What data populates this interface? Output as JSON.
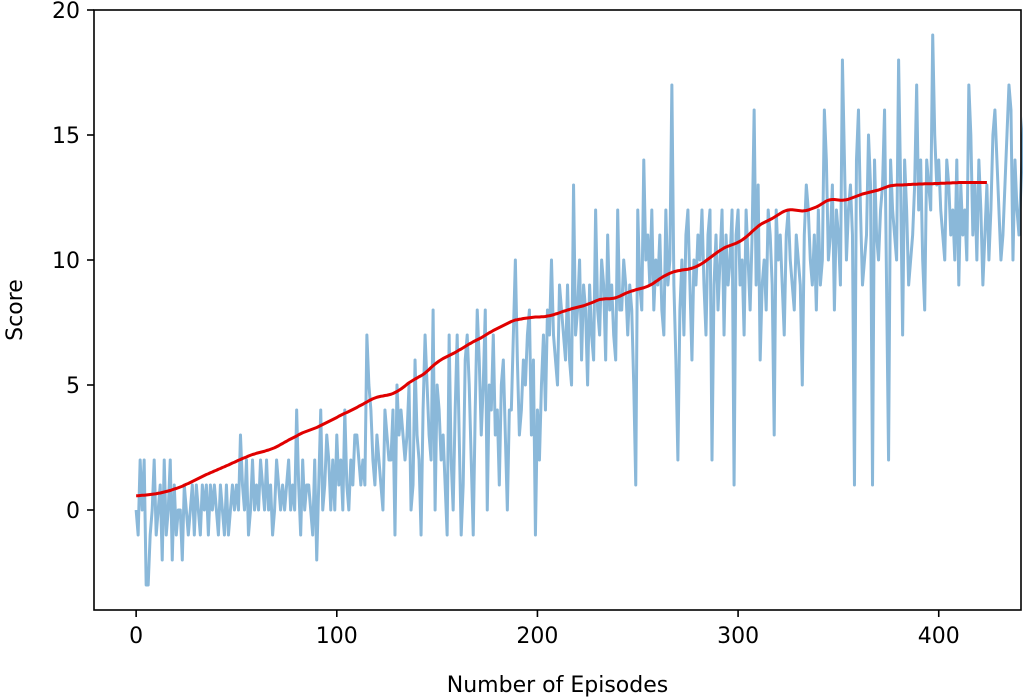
{
  "chart_data": {
    "type": "line",
    "title": "",
    "xlabel": "Number of Episodes",
    "ylabel": "Score",
    "xlim": [
      -21,
      441
    ],
    "ylim": [
      -4,
      20
    ],
    "xticks": [
      0,
      100,
      200,
      300,
      400
    ],
    "yticks": [
      0,
      5,
      10,
      15,
      20
    ],
    "grid": false,
    "legend": "none",
    "series": [
      {
        "color": "#8ab8d9",
        "x_start": 0,
        "x_step": 1,
        "values": [
          0,
          -1,
          2,
          0,
          2,
          -3,
          -3,
          -1,
          0,
          2,
          -1,
          0,
          1,
          -2,
          2,
          -1,
          0,
          2,
          -2,
          1,
          -1,
          0,
          0,
          -2,
          1,
          0,
          -1,
          0,
          1,
          -1,
          1,
          0,
          -1,
          1,
          0,
          1,
          -1,
          1,
          0,
          1,
          0,
          -1,
          1,
          0,
          -1,
          1,
          -1,
          0,
          1,
          0,
          1,
          0,
          3,
          1,
          0,
          2,
          -1,
          0,
          2,
          0,
          1,
          0,
          2,
          1,
          0,
          2,
          0,
          1,
          -1,
          0,
          2,
          1,
          0,
          1,
          0,
          1,
          2,
          0,
          1,
          0,
          4,
          1,
          -1,
          2,
          0,
          1,
          1,
          0,
          -1,
          2,
          -2,
          1,
          4,
          0,
          1,
          3,
          2,
          0,
          2,
          0,
          3,
          1,
          2,
          0,
          4,
          1,
          0,
          2,
          1,
          3,
          3,
          2,
          1,
          2,
          1,
          7,
          5,
          4,
          2,
          1,
          3,
          2,
          1,
          0,
          4,
          3,
          2,
          2,
          4,
          -1,
          5,
          3,
          4,
          3,
          2,
          3,
          5,
          0,
          1,
          6,
          3,
          2,
          -1,
          4,
          7,
          5,
          3,
          2,
          8,
          0,
          5,
          4,
          2,
          3,
          1,
          -1,
          7,
          2,
          0,
          4,
          7,
          3,
          -1,
          1,
          6,
          7,
          5,
          2,
          -1,
          4,
          8,
          6,
          3,
          5,
          8,
          0,
          5,
          4,
          7,
          3,
          4,
          1,
          5,
          6,
          3,
          0,
          4,
          4,
          7,
          10,
          6,
          3,
          4,
          6,
          5,
          7,
          8,
          3,
          6,
          -1,
          4,
          2,
          5,
          7,
          4,
          8,
          7,
          10,
          7,
          6,
          5,
          9,
          8,
          7,
          6,
          9,
          6,
          5,
          13,
          7,
          8,
          10,
          6,
          9,
          8,
          5,
          9,
          7,
          6,
          12,
          8,
          7,
          10,
          9,
          6,
          11,
          8,
          9,
          7,
          6,
          12,
          8,
          8,
          10,
          9,
          7,
          9,
          8,
          5,
          1,
          12,
          9,
          8,
          14,
          10,
          11,
          9,
          12,
          8,
          10,
          9,
          11,
          8,
          7,
          12,
          9,
          10,
          17,
          9,
          6,
          2,
          8,
          10,
          7,
          11,
          12,
          9,
          6,
          10,
          9,
          11,
          10,
          12,
          9,
          7,
          11,
          12,
          2,
          9,
          11,
          8,
          10,
          12,
          7,
          11,
          9,
          10,
          12,
          1,
          11,
          12,
          9,
          10,
          7,
          12,
          10,
          8,
          11,
          16,
          9,
          13,
          6,
          9,
          10,
          8,
          12,
          11,
          9,
          3,
          12,
          10,
          11,
          9,
          7,
          11,
          12,
          10,
          9,
          8,
          11,
          10,
          9,
          5,
          11,
          13,
          12,
          10,
          9,
          11,
          8,
          12,
          9,
          10,
          16,
          14,
          10,
          11,
          13,
          8,
          12,
          11,
          9,
          18,
          14,
          10,
          12,
          13,
          11,
          1,
          14,
          16,
          12,
          9,
          10,
          11,
          15,
          13,
          1,
          14,
          11,
          10,
          12,
          13,
          16,
          9,
          2,
          14,
          12,
          11,
          10,
          18,
          13,
          7,
          14,
          12,
          9,
          10,
          11,
          13,
          17,
          12,
          14,
          10,
          8,
          14,
          13,
          12,
          19,
          15,
          13,
          14,
          12,
          11,
          10,
          14,
          13,
          11,
          12,
          10,
          14,
          9,
          13,
          11,
          12,
          10,
          17,
          15,
          11,
          13,
          10,
          14,
          12,
          9,
          11,
          13,
          10,
          12,
          15,
          16,
          14,
          12,
          10,
          11,
          13,
          15,
          17,
          16,
          10,
          14,
          12,
          11,
          13,
          15,
          16
        ]
      },
      {
        "color": "#e00000",
        "x_start": 0,
        "x_step": 1,
        "values": [
          0.57,
          0.57,
          0.58,
          0.59,
          0.59,
          0.6,
          0.61,
          0.62,
          0.63,
          0.64,
          0.65,
          0.67,
          0.68,
          0.7,
          0.72,
          0.74,
          0.76,
          0.78,
          0.81,
          0.84,
          0.86,
          0.89,
          0.92,
          0.95,
          0.99,
          1.03,
          1.06,
          1.1,
          1.14,
          1.18,
          1.22,
          1.26,
          1.3,
          1.34,
          1.38,
          1.42,
          1.45,
          1.49,
          1.52,
          1.56,
          1.59,
          1.63,
          1.66,
          1.7,
          1.73,
          1.77,
          1.8,
          1.84,
          1.88,
          1.91,
          1.95,
          1.99,
          2.02,
          2.06,
          2.09,
          2.12,
          2.16,
          2.19,
          2.22,
          2.24,
          2.27,
          2.29,
          2.31,
          2.33,
          2.35,
          2.38,
          2.4,
          2.43,
          2.46,
          2.49,
          2.53,
          2.57,
          2.62,
          2.66,
          2.71,
          2.75,
          2.8,
          2.84,
          2.88,
          2.92,
          2.96,
          3.01,
          3.05,
          3.09,
          3.12,
          3.15,
          3.18,
          3.21,
          3.24,
          3.27,
          3.3,
          3.34,
          3.38,
          3.42,
          3.46,
          3.5,
          3.54,
          3.58,
          3.62,
          3.66,
          3.7,
          3.75,
          3.79,
          3.83,
          3.87,
          3.9,
          3.94,
          3.98,
          4.02,
          4.06,
          4.1,
          4.15,
          4.19,
          4.23,
          4.28,
          4.32,
          4.37,
          4.41,
          4.45,
          4.48,
          4.51,
          4.53,
          4.55,
          4.56,
          4.58,
          4.59,
          4.61,
          4.63,
          4.66,
          4.7,
          4.74,
          4.79,
          4.84,
          4.9,
          4.96,
          5.03,
          5.09,
          5.14,
          5.19,
          5.24,
          5.28,
          5.33,
          5.37,
          5.42,
          5.48,
          5.55,
          5.62,
          5.7,
          5.77,
          5.84,
          5.9,
          5.96,
          6.01,
          6.06,
          6.1,
          6.14,
          6.18,
          6.22,
          6.26,
          6.3,
          6.35,
          6.4,
          6.44,
          6.49,
          6.54,
          6.59,
          6.64,
          6.68,
          6.73,
          6.77,
          6.81,
          6.85,
          6.89,
          6.94,
          6.99,
          7.04,
          7.09,
          7.13,
          7.18,
          7.22,
          7.26,
          7.3,
          7.34,
          7.38,
          7.42,
          7.46,
          7.5,
          7.54,
          7.57,
          7.6,
          7.61,
          7.63,
          7.64,
          7.66,
          7.67,
          7.68,
          7.69,
          7.7,
          7.71,
          7.72,
          7.72,
          7.72,
          7.73,
          7.73,
          7.74,
          7.76,
          7.77,
          7.79,
          7.81,
          7.84,
          7.86,
          7.89,
          7.92,
          7.95,
          7.97,
          8.0,
          8.02,
          8.05,
          8.07,
          8.09,
          8.11,
          8.13,
          8.15,
          8.17,
          8.2,
          8.23,
          8.26,
          8.29,
          8.32,
          8.36,
          8.39,
          8.42,
          8.43,
          8.44,
          8.45,
          8.45,
          8.45,
          8.46,
          8.47,
          8.49,
          8.52,
          8.55,
          8.59,
          8.63,
          8.67,
          8.7,
          8.73,
          8.76,
          8.78,
          8.81,
          8.83,
          8.85,
          8.87,
          8.89,
          8.92,
          8.95,
          8.99,
          9.03,
          9.08,
          9.14,
          9.19,
          9.25,
          9.3,
          9.35,
          9.39,
          9.43,
          9.47,
          9.5,
          9.53,
          9.55,
          9.57,
          9.58,
          9.6,
          9.61,
          9.62,
          9.63,
          9.65,
          9.67,
          9.7,
          9.73,
          9.77,
          9.81,
          9.86,
          9.91,
          9.97,
          10.03,
          10.09,
          10.15,
          10.21,
          10.27,
          10.33,
          10.38,
          10.43,
          10.48,
          10.52,
          10.55,
          10.58,
          10.61,
          10.64,
          10.67,
          10.71,
          10.75,
          10.8,
          10.86,
          10.92,
          10.99,
          11.06,
          11.14,
          11.21,
          11.28,
          11.35,
          11.41,
          11.46,
          11.5,
          11.54,
          11.58,
          11.62,
          11.66,
          11.71,
          11.76,
          11.81,
          11.86,
          11.91,
          11.95,
          11.98,
          12.0,
          12.01,
          12.01,
          12.0,
          11.99,
          11.98,
          11.97,
          11.96,
          11.97,
          11.98,
          12.0,
          12.03,
          12.06,
          12.09,
          12.12,
          12.16,
          12.21,
          12.26,
          12.31,
          12.36,
          12.39,
          12.41,
          12.42,
          12.42,
          12.41,
          12.4,
          12.39,
          12.39,
          12.4,
          12.41,
          12.43,
          12.46,
          12.49,
          12.52,
          12.55,
          12.58,
          12.61,
          12.64,
          12.66,
          12.68,
          12.7,
          12.72,
          12.74,
          12.76,
          12.78,
          12.8,
          12.83,
          12.86,
          12.89,
          12.92,
          12.95,
          12.97,
          12.98,
          12.99,
          13.0,
          13.0,
          13.0,
          13.0,
          13.01,
          13.01,
          13.02,
          13.02,
          13.03,
          13.03,
          13.03,
          13.04,
          13.04,
          13.04,
          13.05,
          13.05,
          13.05,
          13.05,
          13.05,
          13.06,
          13.06,
          13.06,
          13.07,
          13.07,
          13.07,
          13.08,
          13.08,
          13.08,
          13.09,
          13.09,
          13.09,
          13.1,
          13.1,
          13.1,
          13.1,
          13.1,
          13.1,
          13.1,
          13.1,
          13.1,
          13.1,
          13.1,
          13.1,
          13.1,
          13.1,
          13.1
        ]
      }
    ]
  }
}
